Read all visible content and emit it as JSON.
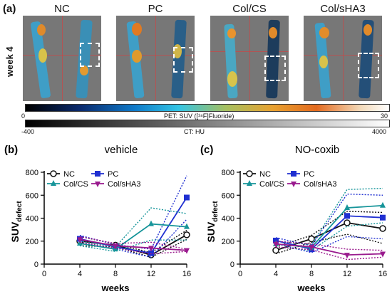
{
  "panel_a": {
    "tag": "(a)",
    "row_label": "week 4",
    "columns": [
      "NC",
      "PC",
      "Col/CS",
      "Col/sHA3"
    ],
    "pet_scale": {
      "min": "0",
      "max": "30",
      "label": "PET: SUV ([¹⁸F]Fluoride)"
    },
    "ct_scale": {
      "min": "-400",
      "max": "4000",
      "label": "CT: HU"
    }
  },
  "chart_data": [
    {
      "type": "line",
      "panel_tag": "(b)",
      "title": "vehicle",
      "xlabel": "weeks",
      "ylabel_main": "SUV",
      "ylabel_sub": "defect",
      "x": [
        4,
        8,
        12,
        16
      ],
      "xlim": [
        0,
        16
      ],
      "xticks": [
        "0",
        "4",
        "8",
        "12",
        "16"
      ],
      "ylim": [
        0,
        800
      ],
      "yticks": [
        "0",
        "200",
        "400",
        "600",
        "800"
      ],
      "legend_placement": "top",
      "series": [
        {
          "name": "NC",
          "color": "#111111",
          "marker": "circle",
          "values": [
            200,
            165,
            80,
            255
          ],
          "upper": [
            240,
            175,
            100,
            295
          ],
          "lower": [
            160,
            150,
            60,
            215
          ]
        },
        {
          "name": "PC",
          "color": "#1f2fd1",
          "marker": "square",
          "values": [
            220,
            150,
            95,
            580
          ],
          "upper": [
            250,
            170,
            130,
            770
          ],
          "lower": [
            190,
            130,
            60,
            390
          ]
        },
        {
          "name": "Col/CS",
          "color": "#17959a",
          "marker": "triangle-up",
          "values": [
            180,
            130,
            350,
            325
          ],
          "upper": [
            200,
            150,
            490,
            440
          ],
          "lower": [
            160,
            110,
            210,
            210
          ]
        },
        {
          "name": "Col/sHA3",
          "color": "#9a1a8e",
          "marker": "triangle-down",
          "values": [
            215,
            160,
            140,
            120
          ],
          "upper": [
            240,
            180,
            190,
            130
          ],
          "lower": [
            190,
            140,
            90,
            110
          ]
        }
      ]
    },
    {
      "type": "line",
      "panel_tag": "(c)",
      "title": "NO-coxib",
      "xlabel": "weeks",
      "ylabel_main": "SUV",
      "ylabel_sub": "defect",
      "x": [
        4,
        8,
        12,
        16
      ],
      "xlim": [
        0,
        16
      ],
      "xticks": [
        "0",
        "4",
        "8",
        "12",
        "16"
      ],
      "ylim": [
        0,
        800
      ],
      "yticks": [
        "0",
        "200",
        "400",
        "600",
        "800"
      ],
      "legend_placement": "top",
      "series": [
        {
          "name": "NC",
          "color": "#111111",
          "marker": "circle",
          "values": [
            120,
            220,
            360,
            310
          ],
          "upper": [
            150,
            250,
            460,
            450
          ],
          "lower": [
            90,
            190,
            260,
            180
          ]
        },
        {
          "name": "PC",
          "color": "#1f2fd1",
          "marker": "square",
          "values": [
            205,
            130,
            420,
            405
          ],
          "upper": [
            230,
            160,
            610,
            600
          ],
          "lower": [
            180,
            100,
            240,
            220
          ]
        },
        {
          "name": "Col/CS",
          "color": "#17959a",
          "marker": "triangle-up",
          "values": [
            175,
            145,
            490,
            510
          ],
          "upper": [
            200,
            170,
            650,
            660
          ],
          "lower": [
            150,
            120,
            330,
            360
          ]
        },
        {
          "name": "Col/sHA3",
          "color": "#9a1a8e",
          "marker": "triangle-down",
          "values": [
            175,
            150,
            80,
            90
          ],
          "upper": [
            200,
            175,
            130,
            120
          ],
          "lower": [
            150,
            125,
            40,
            60
          ]
        }
      ]
    }
  ]
}
